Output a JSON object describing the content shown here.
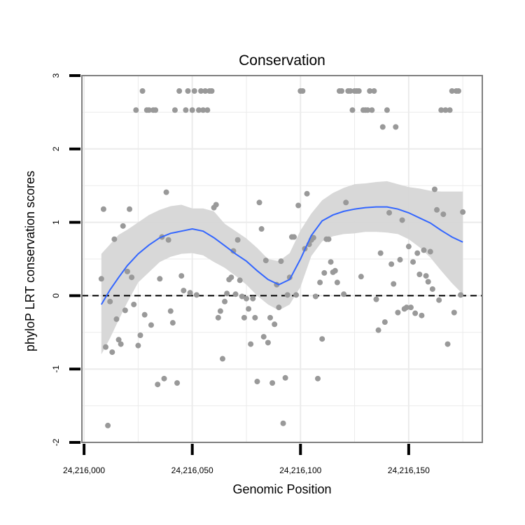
{
  "chart_data": {
    "type": "scatter",
    "title": "Conservation",
    "xlabel": "Genomic Position",
    "ylabel": "phyloP LRT conservation scores",
    "xlim": [
      24215999,
      24216184
    ],
    "ylim": [
      -2,
      3
    ],
    "x_ticks": [
      24216000,
      24216050,
      24216100,
      24216150
    ],
    "x_tick_labels": [
      "24,216,000",
      "24,216,050",
      "24,216,100",
      "24,216,150"
    ],
    "y_ticks": [
      -2,
      -1,
      0,
      1,
      2,
      3
    ],
    "y_tick_labels": [
      "-2",
      "-1",
      "0",
      "1",
      "2",
      "3"
    ],
    "grid": true,
    "legend": "none",
    "reference_line": {
      "y": 0,
      "style": "dashed",
      "color": "#000000"
    },
    "colors": {
      "points": "#999999",
      "smooth": "#3366ff",
      "ribbon": "#d6d6d6",
      "grid": "#ebebeb",
      "border": "#7f7f7f"
    },
    "points": [
      [
        24216008,
        0.23
      ],
      [
        24216009,
        1.18
      ],
      [
        24216010,
        -0.7
      ],
      [
        24216011,
        -1.77
      ],
      [
        24216012,
        -0.08
      ],
      [
        24216013,
        -0.77
      ],
      [
        24216014,
        0.77
      ],
      [
        24216015,
        -0.32
      ],
      [
        24216016,
        -0.6
      ],
      [
        24216017,
        -0.66
      ],
      [
        24216018,
        0.95
      ],
      [
        24216019,
        -0.2
      ],
      [
        24216020,
        0.33
      ],
      [
        24216021,
        1.18
      ],
      [
        24216022,
        0.25
      ],
      [
        24216023,
        -0.12
      ],
      [
        24216024,
        2.53
      ],
      [
        24216025,
        -0.68
      ],
      [
        24216026,
        -0.54
      ],
      [
        24216027,
        2.79
      ],
      [
        24216028,
        -0.26
      ],
      [
        24216029,
        2.53
      ],
      [
        24216030,
        2.53
      ],
      [
        24216031,
        -0.4
      ],
      [
        24216032,
        2.53
      ],
      [
        24216033,
        2.53
      ],
      [
        24216034,
        -1.21
      ],
      [
        24216035,
        0.23
      ],
      [
        24216036,
        0.8
      ],
      [
        24216037,
        -1.13
      ],
      [
        24216038,
        1.41
      ],
      [
        24216039,
        0.76
      ],
      [
        24216040,
        -0.21
      ],
      [
        24216041,
        -0.37
      ],
      [
        24216042,
        2.53
      ],
      [
        24216043,
        -1.19
      ],
      [
        24216044,
        2.79
      ],
      [
        24216045,
        0.27
      ],
      [
        24216046,
        0.07
      ],
      [
        24216047,
        2.53
      ],
      [
        24216048,
        2.79
      ],
      [
        24216049,
        0.04
      ],
      [
        24216050,
        2.53
      ],
      [
        24216051,
        2.79
      ],
      [
        24216052,
        0.01
      ],
      [
        24216053,
        2.53
      ],
      [
        24216054,
        2.79
      ],
      [
        24216055,
        2.53
      ],
      [
        24216056,
        2.79
      ],
      [
        24216057,
        2.53
      ],
      [
        24216058,
        2.79
      ],
      [
        24216059,
        2.79
      ],
      [
        24216060,
        1.2
      ],
      [
        24216061,
        1.24
      ],
      [
        24216062,
        -0.3
      ],
      [
        24216063,
        -0.21
      ],
      [
        24216064,
        -0.86
      ],
      [
        24216065,
        -0.08
      ],
      [
        24216066,
        0.03
      ],
      [
        24216067,
        0.22
      ],
      [
        24216068,
        0.25
      ],
      [
        24216069,
        0.61
      ],
      [
        24216070,
        0.02
      ],
      [
        24216071,
        0.76
      ],
      [
        24216072,
        0.21
      ],
      [
        24216073,
        -0.01
      ],
      [
        24216074,
        -0.3
      ],
      [
        24216075,
        -0.04
      ],
      [
        24216076,
        -0.18
      ],
      [
        24216077,
        -0.66
      ],
      [
        24216078,
        -0.04
      ],
      [
        24216079,
        -0.3
      ],
      [
        24216080,
        -1.17
      ],
      [
        24216081,
        1.27
      ],
      [
        24216082,
        0.91
      ],
      [
        24216083,
        -0.56
      ],
      [
        24216084,
        0.48
      ],
      [
        24216085,
        -0.64
      ],
      [
        24216086,
        -0.3
      ],
      [
        24216087,
        -1.19
      ],
      [
        24216088,
        -0.39
      ],
      [
        24216089,
        0.15
      ],
      [
        24216090,
        -0.16
      ],
      [
        24216091,
        0.47
      ],
      [
        24216092,
        -1.74
      ],
      [
        24216093,
        -1.12
      ],
      [
        24216094,
        0.01
      ],
      [
        24216095,
        0.25
      ],
      [
        24216096,
        0.8
      ],
      [
        24216097,
        0.8
      ],
      [
        24216098,
        0.01
      ],
      [
        24216099,
        1.23
      ],
      [
        24216100,
        2.79
      ],
      [
        24216101,
        2.79
      ],
      [
        24216102,
        0.64
      ],
      [
        24216103,
        1.39
      ],
      [
        24216104,
        0.7
      ],
      [
        24216105,
        0.76
      ],
      [
        24216106,
        0.79
      ],
      [
        24216107,
        -0.01
      ],
      [
        24216108,
        -1.13
      ],
      [
        24216109,
        0.18
      ],
      [
        24216110,
        -0.59
      ],
      [
        24216111,
        0.31
      ],
      [
        24216112,
        0.77
      ],
      [
        24216113,
        0.77
      ],
      [
        24216114,
        0.46
      ],
      [
        24216115,
        0.32
      ],
      [
        24216116,
        0.34
      ],
      [
        24216117,
        0.18
      ],
      [
        24216118,
        2.79
      ],
      [
        24216119,
        2.79
      ],
      [
        24216120,
        0.02
      ],
      [
        24216121,
        1.27
      ],
      [
        24216122,
        2.79
      ],
      [
        24216123,
        2.79
      ],
      [
        24216124,
        2.53
      ],
      [
        24216125,
        2.79
      ],
      [
        24216126,
        2.79
      ],
      [
        24216127,
        2.79
      ],
      [
        24216128,
        0.26
      ],
      [
        24216129,
        2.53
      ],
      [
        24216130,
        2.53
      ],
      [
        24216131,
        2.53
      ],
      [
        24216132,
        2.79
      ],
      [
        24216133,
        2.53
      ],
      [
        24216134,
        2.79
      ],
      [
        24216135,
        -0.05
      ],
      [
        24216136,
        -0.47
      ],
      [
        24216137,
        0.58
      ],
      [
        24216138,
        2.3
      ],
      [
        24216139,
        -0.36
      ],
      [
        24216140,
        2.53
      ],
      [
        24216141,
        1.13
      ],
      [
        24216142,
        0.43
      ],
      [
        24216143,
        0.16
      ],
      [
        24216144,
        2.3
      ],
      [
        24216145,
        -0.23
      ],
      [
        24216146,
        0.49
      ],
      [
        24216147,
        1.03
      ],
      [
        24216148,
        -0.18
      ],
      [
        24216149,
        -0.16
      ],
      [
        24216150,
        0.67
      ],
      [
        24216151,
        -0.16
      ],
      [
        24216152,
        0.46
      ],
      [
        24216153,
        -0.24
      ],
      [
        24216154,
        0.58
      ],
      [
        24216155,
        0.29
      ],
      [
        24216156,
        -0.27
      ],
      [
        24216157,
        0.62
      ],
      [
        24216158,
        0.27
      ],
      [
        24216159,
        0.19
      ],
      [
        24216160,
        0.6
      ],
      [
        24216161,
        0.09
      ],
      [
        24216162,
        1.45
      ],
      [
        24216163,
        1.17
      ],
      [
        24216164,
        -0.06
      ],
      [
        24216165,
        2.53
      ],
      [
        24216166,
        1.11
      ],
      [
        24216167,
        2.53
      ],
      [
        24216168,
        -0.66
      ],
      [
        24216169,
        2.53
      ],
      [
        24216170,
        2.79
      ],
      [
        24216171,
        -0.23
      ],
      [
        24216172,
        2.79
      ],
      [
        24216173,
        2.79
      ],
      [
        24216174,
        0.01
      ],
      [
        24216175,
        1.14
      ]
    ],
    "smooth_line": [
      [
        24216008,
        -0.12
      ],
      [
        24216012,
        0.08
      ],
      [
        24216016,
        0.25
      ],
      [
        24216020,
        0.41
      ],
      [
        24216025,
        0.57
      ],
      [
        24216030,
        0.69
      ],
      [
        24216035,
        0.79
      ],
      [
        24216040,
        0.85
      ],
      [
        24216045,
        0.88
      ],
      [
        24216050,
        0.91
      ],
      [
        24216055,
        0.88
      ],
      [
        24216060,
        0.79
      ],
      [
        24216065,
        0.68
      ],
      [
        24216070,
        0.57
      ],
      [
        24216075,
        0.47
      ],
      [
        24216080,
        0.34
      ],
      [
        24216085,
        0.22
      ],
      [
        24216090,
        0.15
      ],
      [
        24216095,
        0.22
      ],
      [
        24216100,
        0.5
      ],
      [
        24216105,
        0.82
      ],
      [
        24216110,
        1.02
      ],
      [
        24216115,
        1.1
      ],
      [
        24216120,
        1.15
      ],
      [
        24216125,
        1.18
      ],
      [
        24216130,
        1.2
      ],
      [
        24216135,
        1.21
      ],
      [
        24216140,
        1.21
      ],
      [
        24216145,
        1.18
      ],
      [
        24216150,
        1.13
      ],
      [
        24216155,
        1.06
      ],
      [
        24216160,
        0.99
      ],
      [
        24216165,
        0.89
      ],
      [
        24216170,
        0.8
      ],
      [
        24216175,
        0.73
      ]
    ],
    "ribbon_upper": [
      [
        24216008,
        0.57
      ],
      [
        24216012,
        0.7
      ],
      [
        24216016,
        0.83
      ],
      [
        24216020,
        0.9
      ],
      [
        24216025,
        1.0
      ],
      [
        24216030,
        1.1
      ],
      [
        24216035,
        1.17
      ],
      [
        24216040,
        1.22
      ],
      [
        24216045,
        1.24
      ],
      [
        24216050,
        1.19
      ],
      [
        24216055,
        1.19
      ],
      [
        24216060,
        1.15
      ],
      [
        24216065,
        0.98
      ],
      [
        24216070,
        0.88
      ],
      [
        24216075,
        0.78
      ],
      [
        24216080,
        0.65
      ],
      [
        24216085,
        0.5
      ],
      [
        24216090,
        0.47
      ],
      [
        24216095,
        0.58
      ],
      [
        24216100,
        0.89
      ],
      [
        24216105,
        1.12
      ],
      [
        24216110,
        1.3
      ],
      [
        24216115,
        1.4
      ],
      [
        24216120,
        1.47
      ],
      [
        24216125,
        1.52
      ],
      [
        24216130,
        1.53
      ],
      [
        24216135,
        1.55
      ],
      [
        24216140,
        1.56
      ],
      [
        24216145,
        1.52
      ],
      [
        24216150,
        1.48
      ],
      [
        24216155,
        1.46
      ],
      [
        24216160,
        1.43
      ],
      [
        24216165,
        1.42
      ],
      [
        24216170,
        1.42
      ],
      [
        24216175,
        1.42
      ]
    ],
    "ribbon_lower": [
      [
        24216008,
        -0.8
      ],
      [
        24216012,
        -0.58
      ],
      [
        24216016,
        -0.33
      ],
      [
        24216020,
        -0.09
      ],
      [
        24216025,
        0.18
      ],
      [
        24216030,
        0.32
      ],
      [
        24216035,
        0.46
      ],
      [
        24216040,
        0.53
      ],
      [
        24216045,
        0.57
      ],
      [
        24216050,
        0.58
      ],
      [
        24216055,
        0.55
      ],
      [
        24216060,
        0.46
      ],
      [
        24216065,
        0.38
      ],
      [
        24216070,
        0.27
      ],
      [
        24216075,
        0.15
      ],
      [
        24216080,
        0.0
      ],
      [
        24216085,
        -0.12
      ],
      [
        24216090,
        -0.2
      ],
      [
        24216095,
        -0.12
      ],
      [
        24216100,
        0.12
      ],
      [
        24216105,
        0.54
      ],
      [
        24216110,
        0.74
      ],
      [
        24216115,
        0.81
      ],
      [
        24216120,
        0.84
      ],
      [
        24216125,
        0.85
      ],
      [
        24216130,
        0.87
      ],
      [
        24216135,
        0.87
      ],
      [
        24216140,
        0.86
      ],
      [
        24216145,
        0.84
      ],
      [
        24216150,
        0.77
      ],
      [
        24216155,
        0.66
      ],
      [
        24216160,
        0.52
      ],
      [
        24216165,
        0.34
      ],
      [
        24216170,
        0.17
      ],
      [
        24216175,
        0.02
      ]
    ]
  }
}
